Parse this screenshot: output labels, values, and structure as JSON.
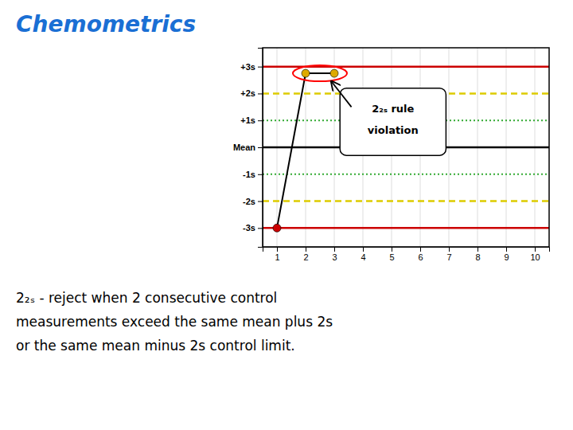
{
  "chart_data": {
    "type": "line",
    "title": "Chemometrics",
    "x": [
      1,
      2,
      3
    ],
    "values": [
      -3.0,
      2.75,
      2.75
    ],
    "color": "#000000",
    "colors": [
      "#cc0000",
      "#ddaa00",
      "#ddaa00"
    ],
    "marker": "circle",
    "xlim": [
      0.5,
      10.5
    ],
    "ylim": [
      -3.7,
      3.7
    ],
    "xticks": [
      1,
      2,
      3,
      4,
      5,
      6,
      7,
      8,
      9,
      10
    ],
    "yticks": [
      {
        "value": 3,
        "label": "+3s"
      },
      {
        "value": 2,
        "label": "+2s"
      },
      {
        "value": 1,
        "label": "+1s"
      },
      {
        "value": 0,
        "label": "Mean"
      },
      {
        "value": -1,
        "label": "-1s"
      },
      {
        "value": -2,
        "label": "-2s"
      },
      {
        "value": -3,
        "label": "-3s"
      }
    ],
    "grid": "x",
    "reference_lines": [
      {
        "value": 3,
        "color": "#cc0000",
        "line_style": "solid"
      },
      {
        "value": -3,
        "color": "#cc0000",
        "line_style": "solid"
      },
      {
        "value": 2,
        "color": "#ddcc00",
        "line_style": "dashed"
      },
      {
        "value": -2,
        "color": "#ddcc00",
        "line_style": "dashed"
      },
      {
        "value": 1,
        "color": "#33aa33",
        "line_style": "dotted"
      },
      {
        "value": -1,
        "color": "#33aa33",
        "line_style": "dotted"
      },
      {
        "value": 0,
        "color": "#000000",
        "line_style": "solid"
      }
    ],
    "annotation": [
      "2₂ₛ rule",
      "violation"
    ],
    "caption": [
      "2₂ₛ - reject when 2 consecutive control",
      "measurements exceed the same mean plus 2s",
      "or the same mean minus 2s control limit."
    ]
  }
}
